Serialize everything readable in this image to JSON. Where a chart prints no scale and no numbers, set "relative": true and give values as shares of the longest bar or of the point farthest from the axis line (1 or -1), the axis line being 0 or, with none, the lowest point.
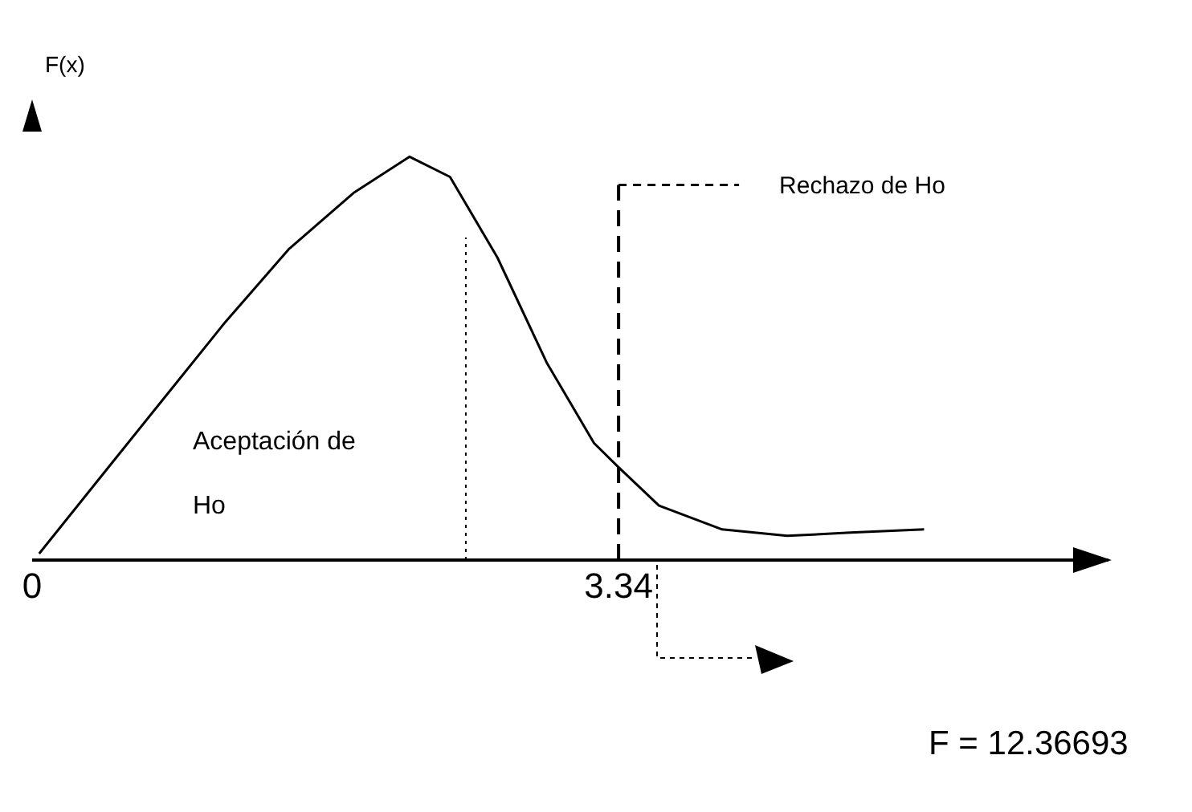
{
  "chart_data": {
    "type": "line",
    "ylabel": "F(x)",
    "relative": true,
    "x": [
      0.04,
      0.37,
      0.73,
      1.1,
      1.46,
      1.83,
      2.15,
      2.38,
      2.65,
      2.93,
      3.2,
      3.34,
      3.57,
      3.93,
      4.3,
      4.66,
      5.08
    ],
    "series": [
      {
        "color": "#000000",
        "values": [
          0.016,
          0.195,
          0.39,
          0.59,
          0.77,
          0.91,
          1.0,
          0.95,
          0.75,
          0.49,
          0.29,
          0.23,
          0.135,
          0.076,
          0.06,
          0.068,
          0.076
        ]
      }
    ],
    "xlim": [
      0,
      6.13
    ],
    "xticks": [
      0,
      3.34
    ],
    "ref_lines": [
      {
        "axis": "x",
        "value": 2.47,
        "line_style": "dotted",
        "color": "#000000"
      },
      {
        "axis": "x",
        "value": 3.34,
        "label": "Rechazo de Ho",
        "line_style": "dashed",
        "color": "#000000"
      }
    ],
    "annotations": [
      "Aceptación de Ho",
      "F = 12.36693"
    ],
    "grid": false,
    "legend": false,
    "marker": "none",
    "line_style": "solid"
  }
}
